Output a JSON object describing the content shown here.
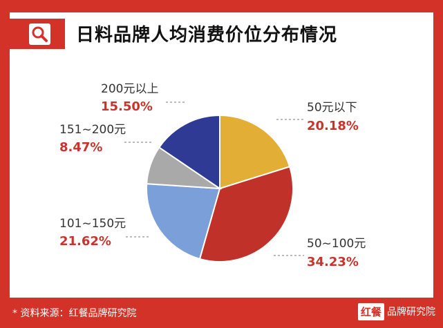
{
  "header": {
    "title": "日料品牌人均消费价位分布情况",
    "icon": "search-icon"
  },
  "footer": {
    "source": "* 资料来源：红餐品牌研究院"
  },
  "brand": {
    "box": "红餐",
    "text": "品牌研究院"
  },
  "colors": {
    "frame": "#d23227",
    "label_pct": "#c8342c"
  },
  "chart_data": {
    "type": "pie",
    "title": "日料品牌人均消费价位分布情况",
    "start_angle_deg": 0,
    "direction": "clockwise",
    "slices": [
      {
        "label": "50元以下",
        "value": 20.18,
        "display": "20.18%",
        "color": "#e3ae35"
      },
      {
        "label": "50~100元",
        "value": 34.23,
        "display": "34.23%",
        "color": "#c0312a"
      },
      {
        "label": "101~150元",
        "value": 21.62,
        "display": "21.62%",
        "color": "#7b9fd9"
      },
      {
        "label": "151~200元",
        "value": 8.47,
        "display": "8.47%",
        "color": "#a9a9a9"
      },
      {
        "label": "200元以上",
        "value": 15.5,
        "display": "15.50%",
        "color": "#2f3a94"
      }
    ]
  }
}
